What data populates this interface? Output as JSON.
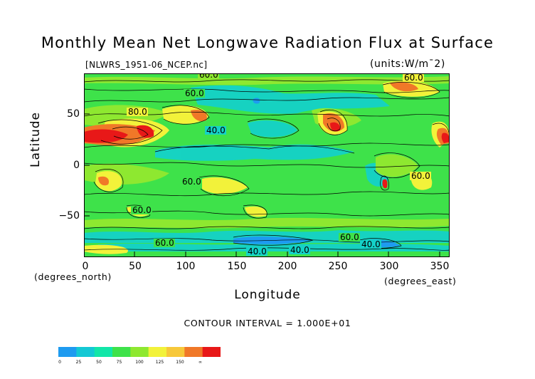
{
  "header": {
    "title": "Monthly Mean Net Longwave Radiation Flux at Surface",
    "filename": "[NLWRS_1951-06_NCEP.nc]",
    "units": "(units:W/m¯2)"
  },
  "axes": {
    "y_ticks": [
      "50",
      "0",
      "−50"
    ],
    "x_ticks": [
      "0",
      "50",
      "100",
      "150",
      "200",
      "250",
      "300",
      "350"
    ],
    "y_title": "Latitude",
    "y_unit": "(degrees_north)",
    "x_title": "Longitude",
    "x_unit": "(degrees_east)",
    "y_range": [
      -90,
      90
    ],
    "x_range": [
      0,
      360
    ]
  },
  "contour_interval": "CONTOUR INTERVAL = 1.000E+01",
  "contour_labels": [
    "60.0",
    "60.0",
    "80.0",
    "40.0",
    "60.0",
    "60.0",
    "60.0",
    "40.0",
    "40.0",
    "60.0",
    "40.0",
    "60.0",
    "60.0"
  ],
  "colorbar": {
    "colors": [
      "#1e9bf0",
      "#14c8d4",
      "#12e6a8",
      "#3ee24a",
      "#8ee830",
      "#f2f23a",
      "#f7c83a",
      "#f07828",
      "#e81818"
    ],
    "labels": [
      "0",
      "25",
      "50",
      "75",
      "100",
      "125",
      "150",
      "∞"
    ]
  },
  "colors": {
    "background_field": "#3ee24a",
    "low_cyan": "#14d2c8",
    "lowest_blue": "#1e9bf0",
    "mid_light_green": "#8ee830",
    "yellow": "#f2f23a",
    "orange": "#f07828",
    "red": "#e81818"
  }
}
